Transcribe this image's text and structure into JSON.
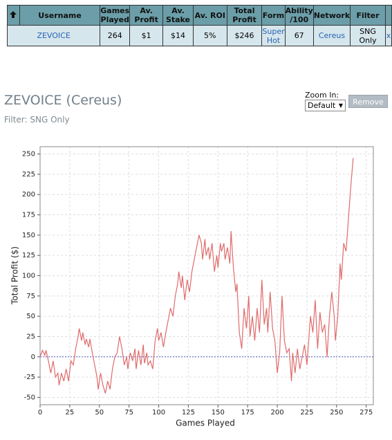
{
  "table": {
    "headers": [
      "Username",
      "Games Played",
      "Av. Profit",
      "Av. Stake",
      "Av. ROI",
      "Total Profit",
      "Form",
      "Ability /100",
      "Network",
      "Filter"
    ],
    "rows": [
      [
        "ZEVOICE",
        "264",
        "$1",
        "$14",
        "5%",
        "$246",
        "Super Hot",
        "67",
        "Cereus",
        "SNG Only",
        "x"
      ]
    ]
  },
  "header": {
    "title": "ZEVOICE (Cereus)",
    "filter": "Filter: SNG Only",
    "zoom_label": "Zoom In:",
    "zoom_value": "Default",
    "remove_button": "Remove"
  },
  "chart_data": {
    "type": "line",
    "xlabel": "Games Played",
    "ylabel": "Total Profit ($)",
    "color": "#e06a6a",
    "grid": true,
    "x": [
      0,
      2,
      4,
      5,
      7,
      9,
      11,
      13,
      15,
      16,
      18,
      20,
      22,
      24,
      26,
      28,
      30,
      32,
      33,
      35,
      36,
      38,
      39,
      41,
      42,
      44,
      46,
      48,
      49,
      51,
      53,
      55,
      57,
      59,
      61,
      63,
      65,
      67,
      69,
      71,
      73,
      74,
      76,
      78,
      80,
      81,
      83,
      85,
      87,
      88,
      90,
      91,
      93,
      95,
      97,
      99,
      100,
      102,
      104,
      106,
      108,
      110,
      112,
      114,
      116,
      117,
      119,
      120,
      122,
      124,
      126,
      128,
      130,
      132,
      134,
      136,
      137,
      139,
      140,
      142,
      143,
      145,
      147,
      149,
      150,
      152,
      153,
      155,
      156,
      158,
      160,
      161,
      163,
      165,
      166,
      168,
      170,
      172,
      174,
      176,
      177,
      179,
      181,
      183,
      185,
      187,
      189,
      191,
      192,
      194,
      196,
      198,
      200,
      202,
      204,
      206,
      208,
      210,
      212,
      213,
      215,
      217,
      219,
      221,
      223,
      225,
      227,
      228,
      230,
      232,
      234,
      236,
      238,
      240,
      242,
      244,
      246,
      248,
      249,
      251,
      253,
      254,
      256,
      258,
      260,
      262,
      264
    ],
    "values": [
      0,
      8,
      2,
      8,
      -5,
      -20,
      -5,
      -25,
      -20,
      -35,
      -20,
      -30,
      -15,
      -30,
      -5,
      -10,
      10,
      25,
      35,
      20,
      30,
      15,
      22,
      12,
      22,
      5,
      -10,
      -25,
      -40,
      -20,
      -35,
      -45,
      -30,
      -40,
      -15,
      0,
      5,
      25,
      10,
      -10,
      0,
      -15,
      5,
      -5,
      10,
      -15,
      8,
      -10,
      15,
      -8,
      5,
      -10,
      -5,
      -15,
      20,
      35,
      20,
      30,
      12,
      30,
      45,
      60,
      50,
      75,
      90,
      105,
      85,
      100,
      70,
      95,
      80,
      105,
      120,
      135,
      150,
      140,
      120,
      145,
      125,
      135,
      120,
      140,
      105,
      125,
      110,
      140,
      130,
      140,
      120,
      135,
      115,
      155,
      110,
      80,
      90,
      30,
      10,
      60,
      35,
      75,
      25,
      50,
      20,
      60,
      30,
      95,
      40,
      60,
      30,
      80,
      35,
      20,
      -20,
      5,
      75,
      20,
      5,
      10,
      -30,
      5,
      -20,
      10,
      -15,
      0,
      15,
      -10,
      30,
      50,
      30,
      70,
      10,
      55,
      30,
      40,
      0,
      50,
      80,
      50,
      20,
      50,
      115,
      95,
      140,
      130,
      170,
      210,
      245
    ],
    "xlim": [
      0,
      281
    ],
    "xticks": [
      0,
      25,
      50,
      75,
      100,
      125,
      150,
      175,
      200,
      225,
      250,
      275
    ],
    "ylim": [
      -59,
      259
    ],
    "yticks": [
      -50,
      -25,
      0,
      25,
      50,
      75,
      100,
      125,
      150,
      175,
      200,
      225,
      250
    ]
  }
}
